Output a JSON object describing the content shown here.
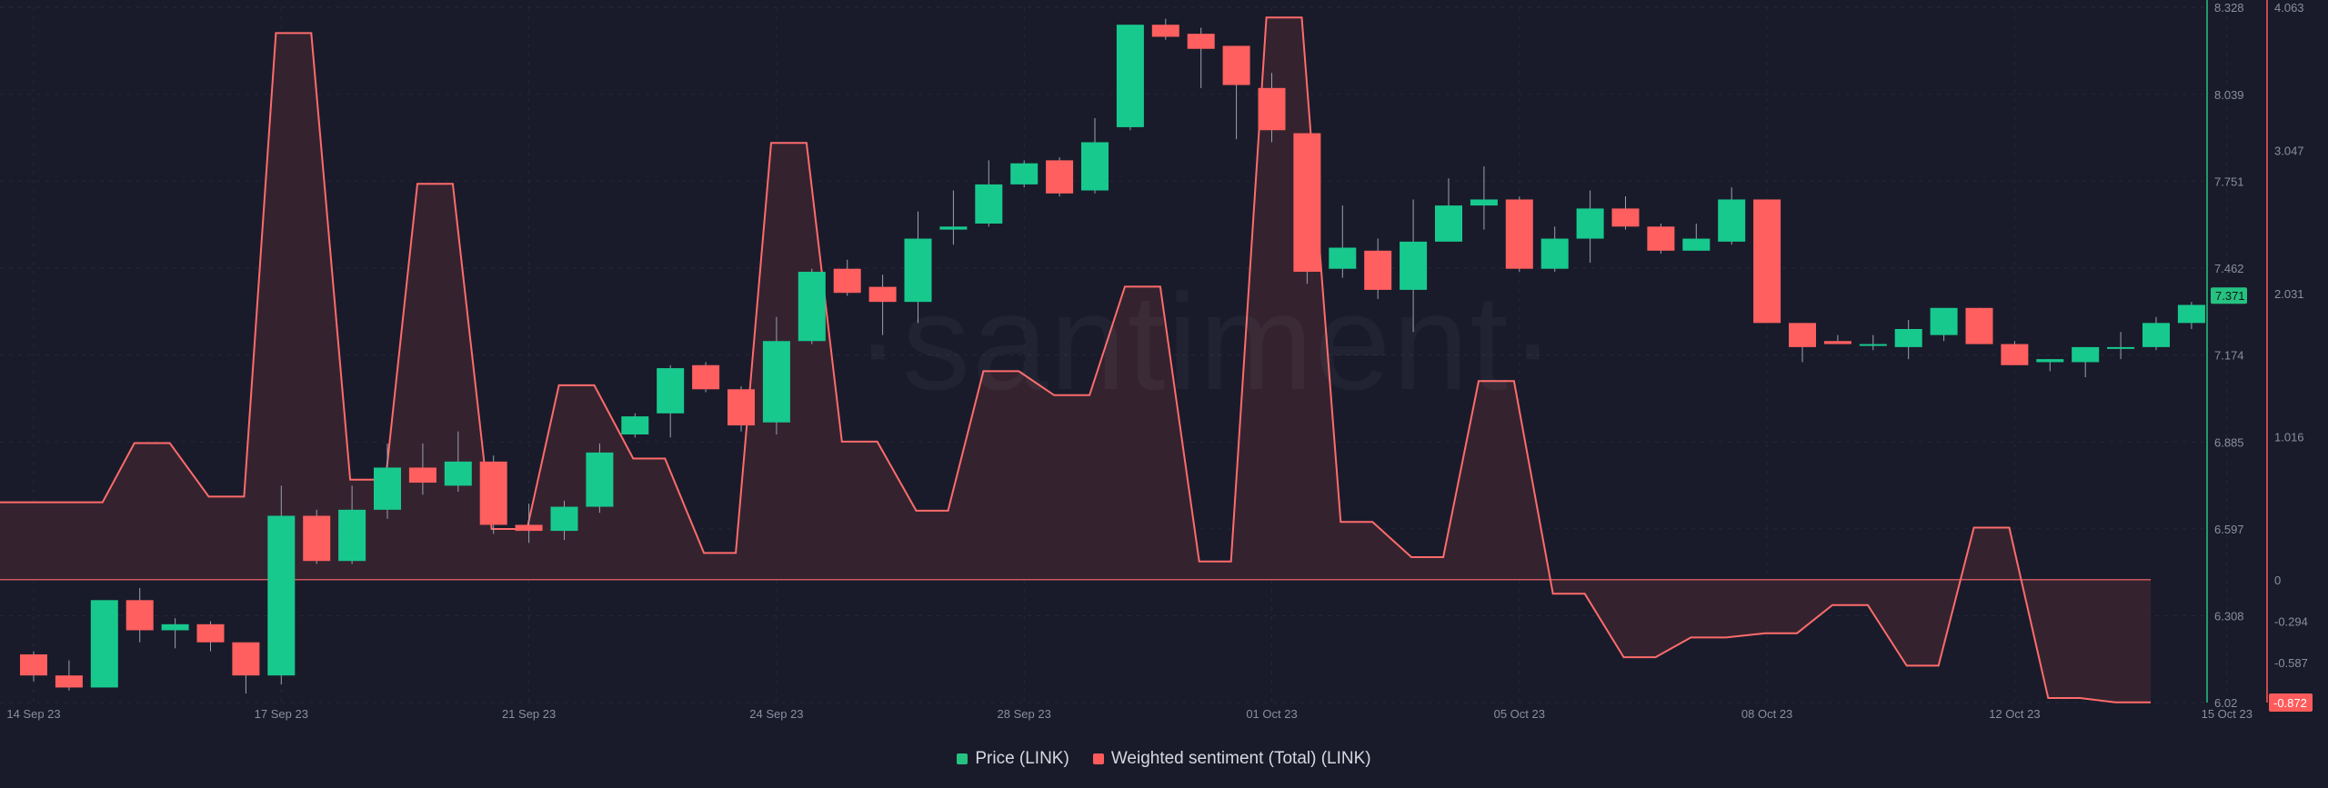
{
  "watermark": "·santiment·",
  "legend": [
    {
      "label": "Price (LINK)",
      "color": "#26c281"
    },
    {
      "label": "Weighted sentiment (Total) (LINK)",
      "color": "#ff5b5b"
    }
  ],
  "colors": {
    "up": "#18c98e",
    "down": "#ff5f5f",
    "sentiment_line": "#ff6b6b",
    "sentiment_fill": "#3a2530",
    "price_axis": "#26c281",
    "sentiment_axis": "#ff5b5b",
    "grid": "#252838"
  },
  "chart_data": {
    "type": "candlestick",
    "x_tick_labels": [
      "14 Sep 23",
      "17 Sep 23",
      "21 Sep 23",
      "24 Sep 23",
      "28 Sep 23",
      "01 Oct 23",
      "05 Oct 23",
      "08 Oct 23",
      "12 Oct 23",
      "15 Oct 23"
    ],
    "price_axis": {
      "ticks": [
        "8.328",
        "8.039",
        "7.751",
        "7.462",
        "7.174",
        "6.885",
        "6.597",
        "6.308",
        "6.02"
      ],
      "ylim": [
        6.02,
        8.328
      ],
      "current": "7.371"
    },
    "sentiment_axis": {
      "ticks": [
        "4.063",
        "3.047",
        "2.031",
        "1.016",
        "0",
        "-0.294",
        "-0.587"
      ],
      "ylim": [
        -0.872,
        4.063
      ],
      "current": "-0.872"
    },
    "series": [
      {
        "name": "Price (LINK)",
        "candles": [
          [
            6.18,
            6.11,
            6.19,
            6.09
          ],
          [
            6.11,
            6.07,
            6.16,
            6.06
          ],
          [
            6.07,
            6.36,
            6.36,
            6.07
          ],
          [
            6.36,
            6.26,
            6.4,
            6.22
          ],
          [
            6.26,
            6.28,
            6.3,
            6.2
          ],
          [
            6.28,
            6.22,
            6.29,
            6.19
          ],
          [
            6.22,
            6.11,
            6.22,
            6.05
          ],
          [
            6.11,
            6.64,
            6.74,
            6.08
          ],
          [
            6.64,
            6.49,
            6.66,
            6.48
          ],
          [
            6.49,
            6.66,
            6.74,
            6.48
          ],
          [
            6.66,
            6.8,
            6.88,
            6.63
          ],
          [
            6.8,
            6.75,
            6.88,
            6.71
          ],
          [
            6.74,
            6.82,
            6.92,
            6.72
          ],
          [
            6.82,
            6.61,
            6.84,
            6.58
          ],
          [
            6.61,
            6.59,
            6.68,
            6.55
          ],
          [
            6.59,
            6.67,
            6.69,
            6.56
          ],
          [
            6.67,
            6.85,
            6.88,
            6.65
          ],
          [
            6.91,
            6.97,
            6.98,
            6.9
          ],
          [
            6.98,
            7.13,
            7.14,
            6.9
          ],
          [
            7.14,
            7.06,
            7.15,
            7.05
          ],
          [
            7.06,
            6.94,
            7.07,
            6.92
          ],
          [
            6.95,
            7.22,
            7.3,
            6.91
          ],
          [
            7.22,
            7.45,
            7.46,
            7.21
          ],
          [
            7.46,
            7.38,
            7.49,
            7.37
          ],
          [
            7.4,
            7.35,
            7.44,
            7.24
          ],
          [
            7.35,
            7.56,
            7.65,
            7.28
          ],
          [
            7.59,
            7.6,
            7.72,
            7.54
          ],
          [
            7.61,
            7.74,
            7.82,
            7.6
          ],
          [
            7.74,
            7.81,
            7.82,
            7.73
          ],
          [
            7.82,
            7.71,
            7.83,
            7.7
          ],
          [
            7.72,
            7.88,
            7.96,
            7.71
          ],
          [
            7.93,
            8.27,
            8.27,
            7.92
          ],
          [
            8.27,
            8.23,
            8.29,
            8.22
          ],
          [
            8.24,
            8.19,
            8.26,
            8.06
          ],
          [
            8.2,
            8.07,
            8.2,
            7.89
          ],
          [
            8.06,
            7.92,
            8.11,
            7.88
          ],
          [
            7.91,
            7.45,
            7.91,
            7.41
          ],
          [
            7.46,
            7.53,
            7.67,
            7.43
          ],
          [
            7.52,
            7.39,
            7.56,
            7.36
          ],
          [
            7.39,
            7.55,
            7.69,
            7.25
          ],
          [
            7.55,
            7.67,
            7.76,
            7.63
          ],
          [
            7.67,
            7.69,
            7.8,
            7.59
          ],
          [
            7.69,
            7.46,
            7.7,
            7.45
          ],
          [
            7.46,
            7.56,
            7.6,
            7.45
          ],
          [
            7.56,
            7.66,
            7.72,
            7.48
          ],
          [
            7.66,
            7.6,
            7.7,
            7.59
          ],
          [
            7.6,
            7.52,
            7.61,
            7.51
          ],
          [
            7.52,
            7.56,
            7.61,
            7.52
          ],
          [
            7.55,
            7.69,
            7.73,
            7.54
          ],
          [
            7.69,
            7.28,
            7.69,
            7.28
          ],
          [
            7.28,
            7.2,
            7.28,
            7.15
          ],
          [
            7.22,
            7.21,
            7.24,
            7.22
          ],
          [
            7.21,
            7.21,
            7.24,
            7.19
          ],
          [
            7.2,
            7.26,
            7.29,
            7.16
          ],
          [
            7.24,
            7.33,
            7.33,
            7.22
          ],
          [
            7.33,
            7.21,
            7.33,
            7.21
          ],
          [
            7.21,
            7.14,
            7.22,
            7.15
          ],
          [
            7.15,
            7.16,
            7.16,
            7.12
          ],
          [
            7.15,
            7.2,
            7.2,
            7.1
          ],
          [
            7.2,
            7.2,
            7.25,
            7.16
          ],
          [
            7.2,
            7.28,
            7.3,
            7.19
          ],
          [
            7.28,
            7.34,
            7.35,
            7.26
          ]
        ]
      },
      {
        "name": "Weighted sentiment (Total) (LINK)",
        "points": [
          [
            0.0,
            0.55
          ],
          [
            2.9,
            0.55
          ],
          [
            3.8,
            0.97
          ],
          [
            4.8,
            0.97
          ],
          [
            5.9,
            0.59
          ],
          [
            6.9,
            0.59
          ],
          [
            7.8,
            3.88
          ],
          [
            8.8,
            3.88
          ],
          [
            9.9,
            0.71
          ],
          [
            10.9,
            0.71
          ],
          [
            11.8,
            2.81
          ],
          [
            12.8,
            2.81
          ],
          [
            13.9,
            0.36
          ],
          [
            14.9,
            0.36
          ],
          [
            15.8,
            1.38
          ],
          [
            16.8,
            1.38
          ],
          [
            17.9,
            0.86
          ],
          [
            18.8,
            0.86
          ],
          [
            19.9,
            0.19
          ],
          [
            20.8,
            0.19
          ],
          [
            21.8,
            3.1
          ],
          [
            22.8,
            3.1
          ],
          [
            23.8,
            0.98
          ],
          [
            24.8,
            0.98
          ],
          [
            25.9,
            0.49
          ],
          [
            26.8,
            0.49
          ],
          [
            27.8,
            1.48
          ],
          [
            28.8,
            1.48
          ],
          [
            29.8,
            1.31
          ],
          [
            30.8,
            1.31
          ],
          [
            31.8,
            2.08
          ],
          [
            32.8,
            2.08
          ],
          [
            33.9,
            0.13
          ],
          [
            34.8,
            0.13
          ],
          [
            35.8,
            3.99
          ],
          [
            36.8,
            3.99
          ],
          [
            37.9,
            0.41
          ],
          [
            38.8,
            0.41
          ],
          [
            39.9,
            0.16
          ],
          [
            40.8,
            0.16
          ],
          [
            41.8,
            1.41
          ],
          [
            42.8,
            1.41
          ],
          [
            43.9,
            -0.1
          ],
          [
            44.8,
            -0.1
          ],
          [
            45.9,
            -0.55
          ],
          [
            46.8,
            -0.55
          ],
          [
            47.8,
            -0.41
          ],
          [
            48.8,
            -0.41
          ],
          [
            49.9,
            -0.38
          ],
          [
            50.8,
            -0.38
          ],
          [
            51.8,
            -0.18
          ],
          [
            52.8,
            -0.18
          ],
          [
            53.9,
            -0.61
          ],
          [
            54.8,
            -0.61
          ],
          [
            55.8,
            0.37
          ],
          [
            56.8,
            0.37
          ],
          [
            57.9,
            -0.84
          ],
          [
            58.8,
            -0.84
          ],
          [
            59.8,
            -0.87
          ],
          [
            60.8,
            -0.87
          ]
        ]
      }
    ]
  }
}
